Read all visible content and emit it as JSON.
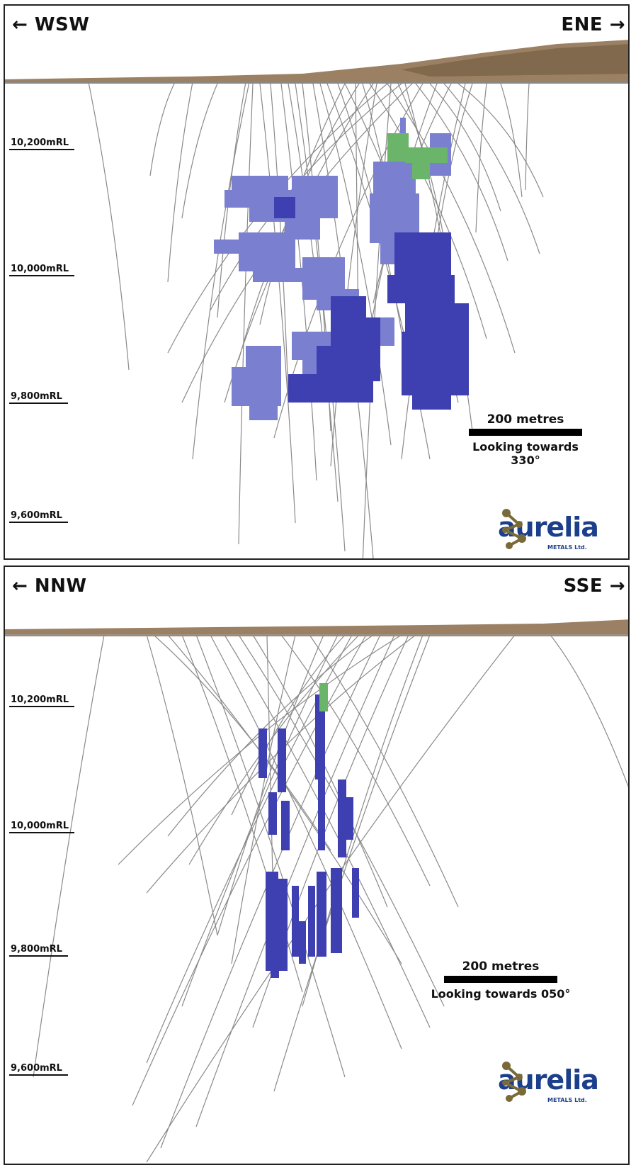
{
  "panels": [
    {
      "dir_left": "WSW",
      "dir_right": "ENE",
      "levels": [
        "10,200mRL",
        "10,000mRL",
        "9,800mRL",
        "9,600mRL"
      ],
      "scale_label": "200 metres",
      "looking": "Looking towards 330°"
    },
    {
      "dir_left": "NNW",
      "dir_right": "SSE",
      "levels": [
        "10,200mRL",
        "10,000mRL",
        "9,800mRL",
        "9,600mRL"
      ],
      "scale_label": "200 metres",
      "looking": "Looking towards 050°"
    }
  ],
  "logo": {
    "brand": "aurelia",
    "sub": "METALS Ltd."
  },
  "colors": {
    "orebody": "#3e3fb0",
    "orebody_light": "#7a7fd0",
    "high_grade": "#6bb56a",
    "terrain": "#8a6a48",
    "drillhole": "#8a8a8a",
    "brand": "#1c3f8c",
    "brand_icon": "#7a6a3a"
  }
}
